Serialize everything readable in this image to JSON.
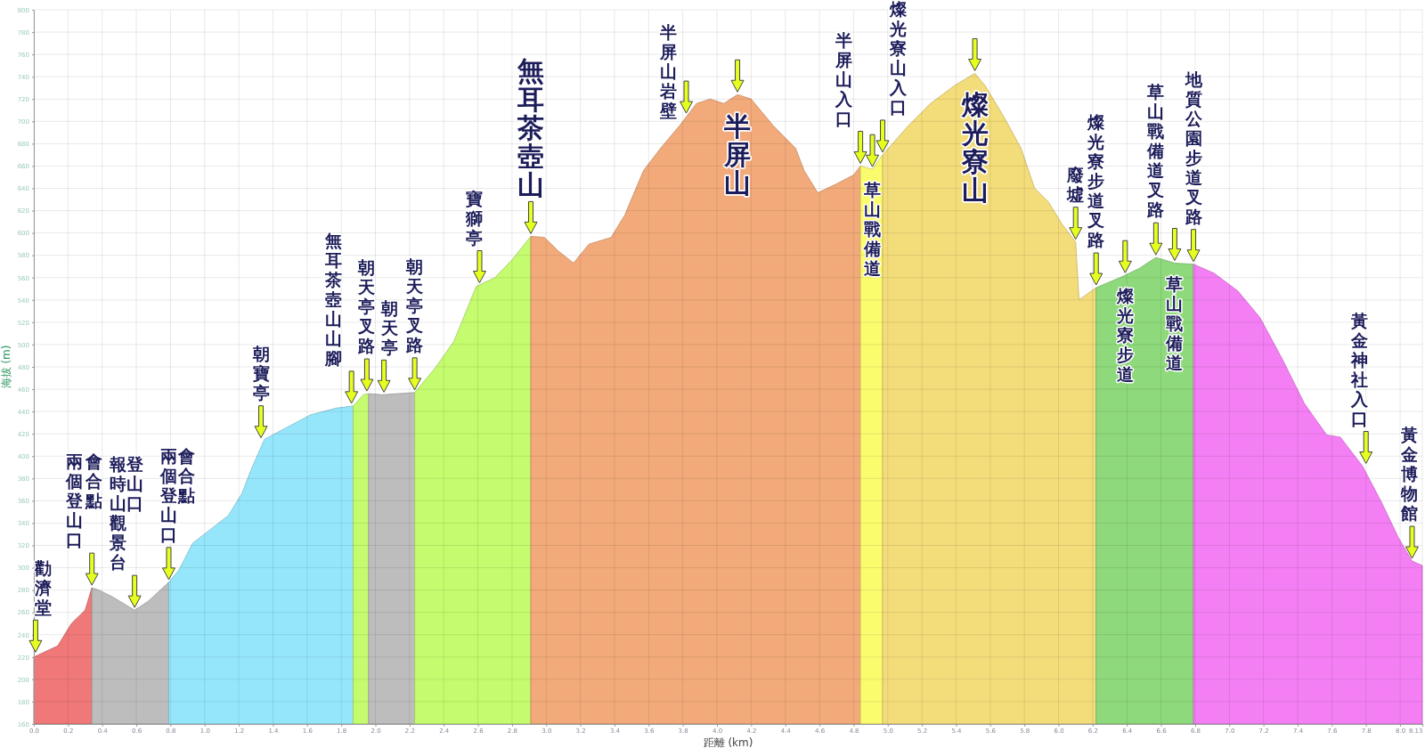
{
  "chart_data": {
    "type": "area",
    "xlabel": "距離 (km)",
    "ylabel": "海拔 (m)",
    "xlim": [
      0,
      8.13
    ],
    "ylim": [
      160,
      800
    ],
    "xticks": [
      {
        "value": 0,
        "label": "0.0"
      },
      0.2,
      0.4,
      0.6,
      0.8,
      {
        "value": 1,
        "label": "1.0"
      },
      1.2,
      1.4,
      1.6,
      1.8,
      {
        "value": 2,
        "label": "2.0"
      },
      2.2,
      2.4,
      2.6,
      2.8,
      {
        "value": 3,
        "label": "3.0"
      },
      3.2,
      3.4,
      3.6,
      3.8,
      {
        "value": 4,
        "label": "4.0"
      },
      4.2,
      4.4,
      4.6,
      4.8,
      {
        "value": 5,
        "label": "5.0"
      },
      5.2,
      5.4,
      5.6,
      5.8,
      {
        "value": 6,
        "label": "6.0"
      },
      6.2,
      6.4,
      6.6,
      6.8,
      {
        "value": 7,
        "label": "7.0"
      },
      7.2,
      7.4,
      7.6,
      7.8,
      {
        "value": 8,
        "label": "8.0"
      },
      8.13
    ],
    "yticks": [
      160,
      180,
      200,
      220,
      240,
      260,
      280,
      300,
      320,
      340,
      360,
      380,
      400,
      420,
      440,
      460,
      480,
      500,
      520,
      540,
      560,
      580,
      600,
      620,
      640,
      660,
      680,
      700,
      720,
      740,
      760,
      780,
      800
    ],
    "grid": true,
    "series": [
      {
        "color": "#f07878",
        "x": [
          0,
          0.14,
          0.22,
          0.3,
          0.34
        ],
        "values": [
          220,
          230,
          250,
          262,
          282
        ]
      },
      {
        "color": "#bdbdbd",
        "x": [
          0.34,
          0.38,
          0.46,
          0.59,
          0.67,
          0.79
        ],
        "values": [
          282,
          280,
          274,
          262,
          270,
          287
        ]
      },
      {
        "color": "#96e6fb",
        "x": [
          0.79,
          0.85,
          0.93,
          1.04,
          1.14,
          1.22,
          1.27,
          1.35,
          1.46,
          1.62,
          1.77,
          1.87
        ],
        "values": [
          287,
          298,
          322,
          335,
          347,
          367,
          387,
          415,
          424,
          437,
          443,
          445
        ]
      },
      {
        "color": "#c5fb6e",
        "x": [
          1.87,
          1.93,
          1.96
        ],
        "values": [
          445,
          455,
          456
        ]
      },
      {
        "color": "#bdbdbd",
        "x": [
          1.96,
          2.04,
          2.23
        ],
        "values": [
          456,
          455,
          457
        ]
      },
      {
        "color": "#c5fb6e",
        "x": [
          2.23,
          2.35,
          2.46,
          2.59,
          2.7,
          2.8,
          2.91
        ],
        "values": [
          457,
          479,
          503,
          552,
          560,
          576,
          597
        ]
      },
      {
        "color": "#f2aa7a",
        "x": [
          2.91,
          2.99,
          3.07,
          3.16,
          3.25,
          3.38,
          3.46,
          3.57,
          3.67,
          3.78,
          3.88,
          3.96,
          4.04,
          4.12,
          4.2,
          4.33,
          4.46,
          4.51,
          4.59,
          4.7,
          4.8,
          4.84
        ],
        "values": [
          597,
          596,
          584,
          573,
          590,
          596,
          616,
          656,
          676,
          696,
          716,
          720,
          716,
          724,
          720,
          696,
          676,
          656,
          636,
          644,
          652,
          660
        ]
      },
      {
        "color": "#fbfb6e",
        "x": [
          4.84,
          4.91,
          4.97
        ],
        "values": [
          660,
          657,
          670
        ]
      },
      {
        "color": "#f3dc7a",
        "x": [
          4.97,
          5.12,
          5.25,
          5.39,
          5.51,
          5.57,
          5.68,
          5.78,
          5.86,
          5.94,
          6.02,
          6.1,
          6.12,
          6.22
        ],
        "values": [
          670,
          696,
          716,
          732,
          743,
          732,
          704,
          676,
          640,
          628,
          608,
          592,
          540,
          551
        ]
      },
      {
        "color": "#8ed97b",
        "x": [
          6.22,
          6.36,
          6.47,
          6.57,
          6.68,
          6.79
        ],
        "values": [
          551,
          560,
          568,
          578,
          573,
          572
        ]
      },
      {
        "color": "#f47ff4",
        "x": [
          6.79,
          6.91,
          7.05,
          7.18,
          7.31,
          7.44,
          7.57,
          7.65,
          7.78,
          7.89,
          7.99,
          8.07,
          8.13
        ],
        "values": [
          572,
          564,
          548,
          524,
          487,
          447,
          419,
          417,
          391,
          359,
          327,
          306,
          302
        ]
      }
    ],
    "annotations": [
      {
        "text": "勸濟堂",
        "x": 0.01,
        "y": 222
      },
      {
        "text": "兩個登山口",
        "x": 0.34,
        "y": 282
      },
      "會合點",
      {
        "text": "報時山觀景台",
        "x": 0.59,
        "y": 262
      },
      "登山口",
      {
        "text": "兩個登山口",
        "x": 0.79,
        "y": 287
      },
      "會合點",
      {
        "text": "朝寶亭",
        "x": 1.33,
        "y": 414
      },
      {
        "text": "無耳茶壺山山腳",
        "x": 1.86,
        "y": 445
      },
      {
        "text": "朝天亭叉路",
        "x": 1.95,
        "y": 456
      },
      {
        "text": "朝天亭",
        "x": 2.05,
        "y": 455
      },
      {
        "text": "朝天亭叉路",
        "x": 2.23,
        "y": 457
      },
      {
        "text": "寶獅亭",
        "x": 2.61,
        "y": 553
      },
      {
        "text": "無耳茶壺山",
        "x": 2.91,
        "y": 597
      },
      {
        "text": "半屏山岩壁",
        "x": 3.82,
        "y": 705
      },
      {
        "text": "半屏山",
        "x": 4.12,
        "y": 724
      },
      {
        "text": "半屏山入口",
        "x": 4.84,
        "y": 660
      },
      {
        "text": "草山戰備道",
        "x": 4.91,
        "y": 657
      },
      {
        "text": "燦光寮山入口",
        "x": 4.97,
        "y": 670
      },
      {
        "text": "燦光寮山",
        "x": 5.51,
        "y": 743
      },
      {
        "text": "廢墟",
        "x": 6.1,
        "y": 592
      },
      {
        "text": "燦光寮步道叉路",
        "x": 6.22,
        "y": 551
      },
      {
        "text": "燦光寮步道",
        "x": 6.39,
        "y": 562
      },
      {
        "text": "草山戰備道叉路",
        "x": 6.57,
        "y": 578
      },
      {
        "text": "草山戰備道",
        "x": 6.68,
        "y": 573
      },
      {
        "text": "地質公園步道叉路",
        "x": 6.79,
        "y": 572
      },
      {
        "text": "黃金神社入口",
        "x": 7.8,
        "y": 391
      },
      {
        "text": "黃金博物館",
        "x": 8.07,
        "y": 306
      }
    ]
  }
}
